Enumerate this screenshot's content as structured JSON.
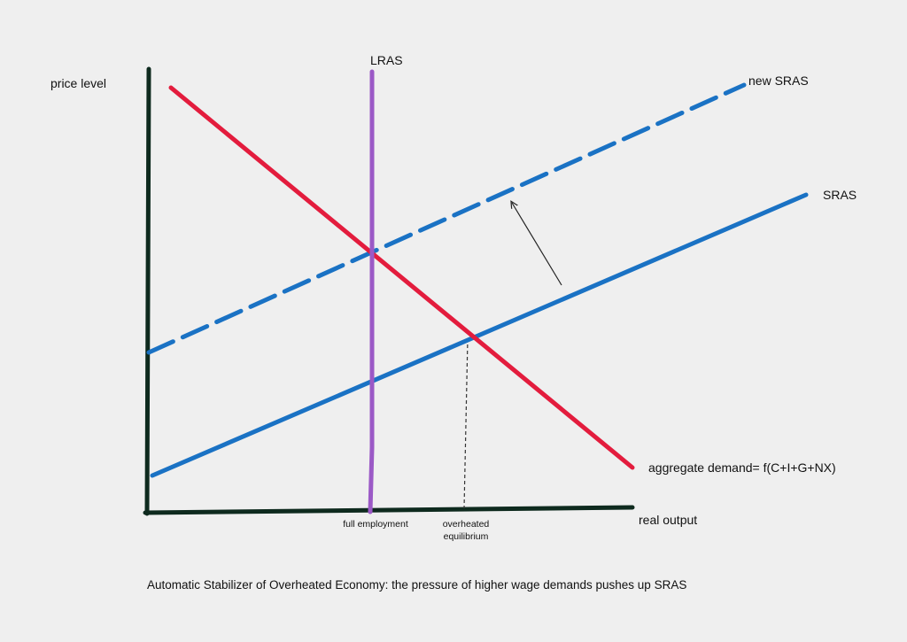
{
  "labels": {
    "y_axis": "price level",
    "x_axis": "real output",
    "lras": "LRAS",
    "new_sras": "new SRAS",
    "sras": "SRAS",
    "ad": "aggregate demand= f(C+I+G+NX)",
    "full_employment": "full employment",
    "overheated_equilibrium": "overheated equilibrium"
  },
  "caption": "Automatic Stabilizer of Overheated Economy: the pressure of higher wage demands pushes up SRAS",
  "colors": {
    "background": "#efefef",
    "axes": "#0e2a1e",
    "aggregate_demand": "#e31c3d",
    "lras": "#9b59c6",
    "sras": "#1a72c4",
    "new_sras": "#1a72c4",
    "arrow": "#222222",
    "guide": "#333333"
  }
}
